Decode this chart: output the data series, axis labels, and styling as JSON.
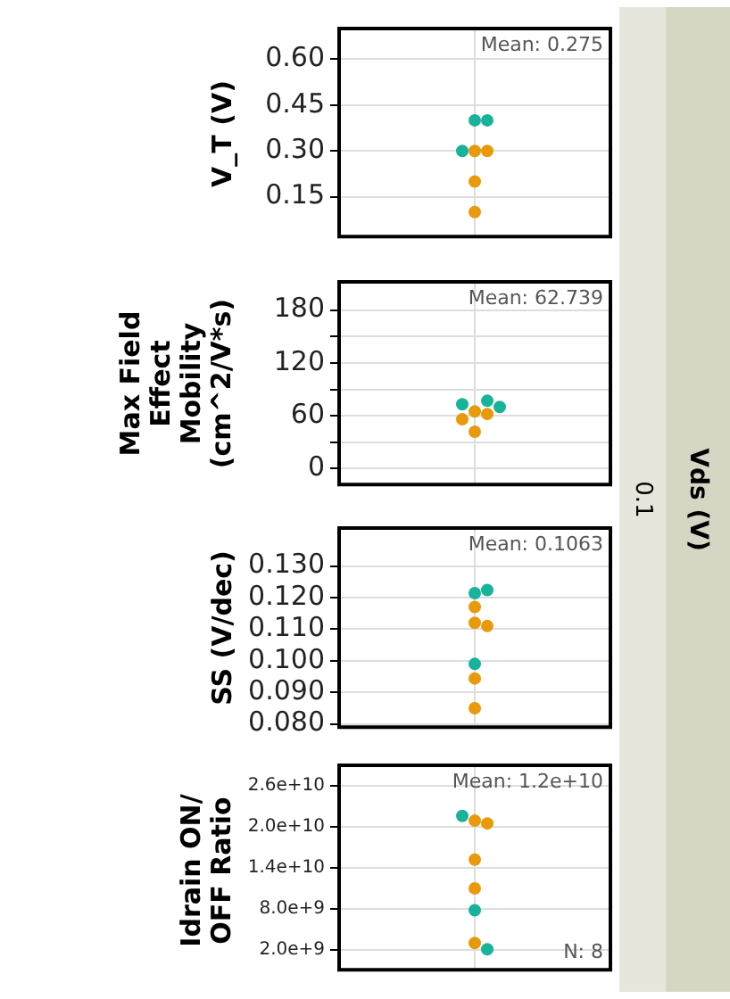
{
  "chart_data": [
    {
      "type": "scatter",
      "ylabel": "V_T (V)",
      "annotations": [
        "Mean: 0.275",
        "0.1",
        "Vds (V)"
      ],
      "categories": [
        null
      ],
      "ylim": [
        0.02,
        0.7
      ],
      "yticks": [
        {
          "value": 0.15,
          "label": "0.15"
        },
        {
          "value": 0.3,
          "label": "0.30"
        },
        {
          "value": 0.45,
          "label": "0.45"
        },
        {
          "value": 0.6,
          "label": "0.60"
        }
      ],
      "grid": true,
      "marker": "circle",
      "legend": false,
      "series": [
        {
          "color": "#e89a0c",
          "x": [
            null,
            null,
            null,
            null
          ],
          "values": [
            0.3,
            0.3,
            0.2,
            0.1
          ]
        },
        {
          "color": "#17b39a",
          "x": [
            null,
            null,
            null
          ],
          "values": [
            0.4,
            0.4,
            0.3
          ]
        }
      ]
    },
    {
      "type": "scatter",
      "ylabel": "Max Field Effect Mobility (cm^2/V*s)",
      "annotations": [
        "Mean: 62.739"
      ],
      "categories": [
        null
      ],
      "ylim": [
        -18,
        212
      ],
      "yticks": [
        0,
        {
          "value": 30,
          "label": null
        },
        60,
        {
          "value": 90,
          "label": null
        },
        120,
        {
          "value": 150,
          "label": null
        },
        180
      ],
      "grid": true,
      "marker": "circle",
      "legend": false,
      "series": [
        {
          "color": "#e89a0c",
          "x": [
            null,
            null,
            null,
            null
          ],
          "values": [
            65,
            62,
            56,
            42
          ]
        },
        {
          "color": "#17b39a",
          "x": [
            null,
            null,
            null
          ],
          "values": [
            73,
            70,
            77
          ]
        }
      ]
    },
    {
      "type": "scatter",
      "ylabel": "SS (V/dec)",
      "annotations": [
        "Mean: 0.1063"
      ],
      "categories": [
        null
      ],
      "ylim": [
        0.079,
        0.142
      ],
      "yticks": [
        {
          "value": 0.08,
          "label": "0.080"
        },
        {
          "value": 0.09,
          "label": "0.090"
        },
        {
          "value": 0.1,
          "label": "0.100"
        },
        {
          "value": 0.11,
          "label": "0.110"
        },
        {
          "value": 0.12,
          "label": "0.120"
        },
        {
          "value": 0.13,
          "label": "0.130"
        }
      ],
      "grid": true,
      "marker": "circle",
      "legend": false,
      "series": [
        {
          "color": "#e89a0c",
          "x": [
            null,
            null,
            null,
            null,
            null
          ],
          "values": [
            0.117,
            0.112,
            0.111,
            0.0944,
            0.085
          ]
        },
        {
          "color": "#17b39a",
          "x": [
            null,
            null,
            null
          ],
          "values": [
            0.1214,
            0.1224,
            0.099
          ]
        }
      ]
    },
    {
      "type": "scatter",
      "ylabel": "Idrain ON/ OFF Ratio",
      "annotations": [
        "Mean: 1.2e+10",
        "N: 8"
      ],
      "categories": [
        null
      ],
      "ylim": [
        -900000000,
        29000000000
      ],
      "yticks": [
        {
          "value": 2000000000,
          "label": "2.0e+9"
        },
        {
          "value": 8000000000,
          "label": "8.0e+9"
        },
        {
          "value": 14000000000,
          "label": "1.4e+10"
        },
        {
          "value": 20000000000,
          "label": "2.0e+10"
        },
        {
          "value": 26000000000,
          "label": "2.6e+10"
        }
      ],
      "grid": true,
      "marker": "circle",
      "legend": false,
      "series": [
        {
          "color": "#e89a0c",
          "x": [
            null,
            null,
            null,
            null,
            null
          ],
          "values": [
            20900000000,
            20500000000,
            15200000000,
            11000000000,
            3000000000
          ]
        },
        {
          "color": "#17b39a",
          "x": [
            null,
            null,
            null
          ],
          "values": [
            21600000000,
            7800000000,
            2100000000
          ]
        }
      ]
    }
  ]
}
